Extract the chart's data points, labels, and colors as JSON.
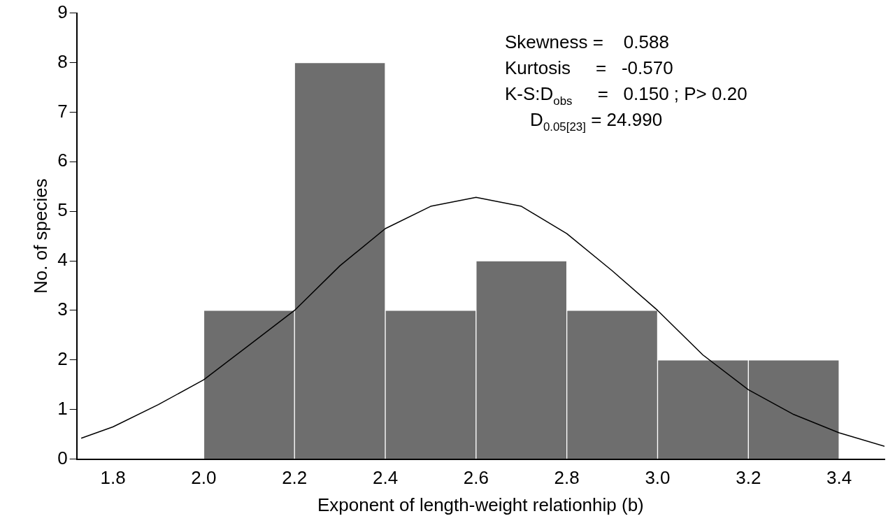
{
  "chart_data": {
    "type": "histogram",
    "xlabel": "Exponent of length-weight relationhip (b)",
    "ylabel": "No. of species",
    "bins": [
      1.8,
      2.0,
      2.2,
      2.4,
      2.6,
      2.8,
      3.0,
      3.2,
      3.4
    ],
    "values": [
      0,
      3,
      8,
      3,
      4,
      3,
      2,
      2
    ],
    "color": "#6e6e6e",
    "series": [
      {
        "type": "line",
        "color": "#000000",
        "x": [
          1.73,
          1.8,
          1.9,
          2.0,
          2.1,
          2.2,
          2.3,
          2.4,
          2.5,
          2.6,
          2.7,
          2.8,
          2.9,
          3.0,
          3.1,
          3.2,
          3.3,
          3.4,
          3.5
        ],
        "values": [
          0.42,
          0.65,
          1.1,
          1.6,
          2.3,
          3.0,
          3.9,
          4.65,
          5.1,
          5.28,
          5.1,
          4.55,
          3.8,
          3.0,
          2.1,
          1.4,
          0.9,
          0.53,
          0.26
        ]
      }
    ],
    "xlim": [
      1.72,
      3.5
    ],
    "xticks": [
      1.8,
      {
        "value": 2.0,
        "label": "2.0"
      },
      2.2,
      2.4,
      2.6,
      2.8,
      {
        "value": 3.0,
        "label": "3.0"
      },
      3.2,
      3.4
    ],
    "ylim": [
      0,
      9
    ],
    "yticks": [
      0,
      1,
      2,
      3,
      4,
      5,
      6,
      7,
      8,
      9
    ],
    "grid": false,
    "legend": false,
    "marker": "none",
    "annotations": [
      "Skewness =    0.588",
      "Kurtosis     =   -0.570",
      "K-S:D$_{obs}$     =   0.150 ; P> 0.20",
      "     D$_{0.05[23]}$ = 24.990"
    ]
  }
}
